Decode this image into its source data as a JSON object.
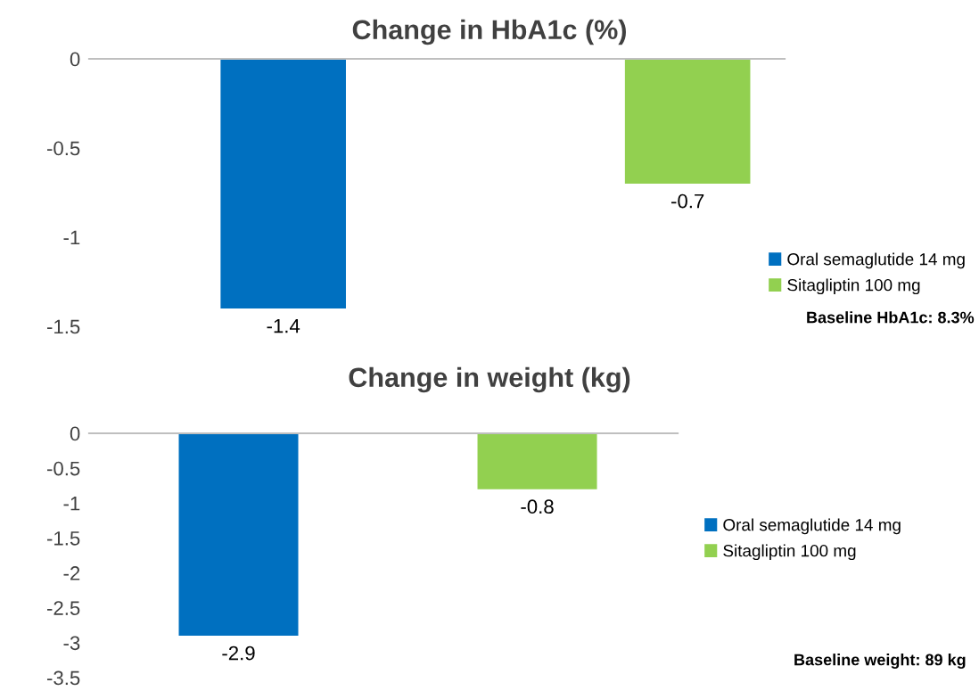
{
  "chart_data": [
    {
      "type": "bar",
      "title": "Change in HbA1c (%)",
      "categories": [
        null,
        null
      ],
      "series": [
        {
          "name": "Oral semaglutide 14 mg",
          "color": "#0070c0",
          "values": [
            -1.4,
            null
          ]
        },
        {
          "name": "Sitagliptin 100 mg",
          "color": "#92d050",
          "values": [
            null,
            -0.7
          ]
        }
      ],
      "ylim": [
        -1.5,
        0
      ],
      "yticks": [
        0,
        -0.5,
        -1,
        -1.5
      ],
      "data_labels": true,
      "legend": "right",
      "grid": false,
      "annotations": [
        "Baseline HbA1c: 8.3%"
      ]
    },
    {
      "type": "bar",
      "title": "Change in weight (kg)",
      "categories": [
        null,
        null
      ],
      "series": [
        {
          "name": "Oral semaglutide 14 mg",
          "color": "#0070c0",
          "values": [
            -2.9,
            null
          ]
        },
        {
          "name": "Sitagliptin 100 mg",
          "color": "#92d050",
          "values": [
            null,
            -0.8
          ]
        }
      ],
      "ylim": [
        -3.5,
        0
      ],
      "yticks": [
        0,
        -0.5,
        -1,
        -1.5,
        -2,
        -2.5,
        -3,
        -3.5
      ],
      "data_labels": true,
      "legend": "right",
      "grid": false,
      "annotations": [
        "Baseline weight: 89 kg"
      ]
    }
  ]
}
